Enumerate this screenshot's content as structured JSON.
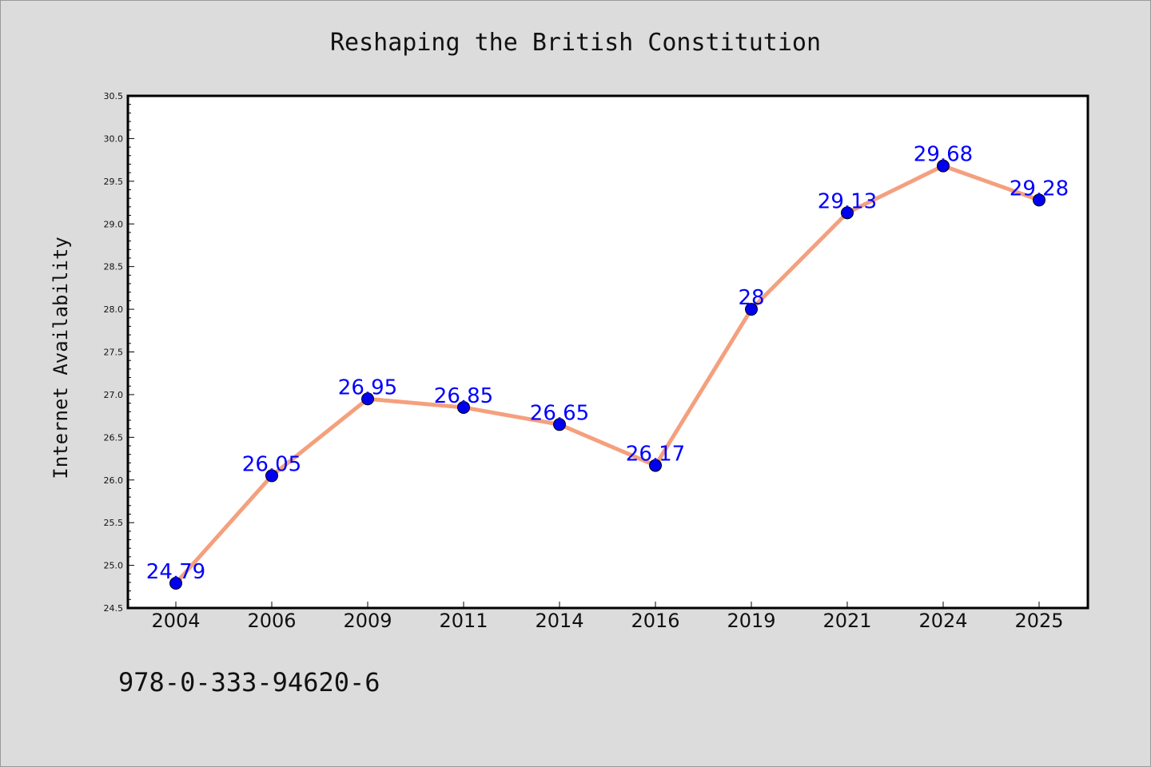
{
  "chart_data": {
    "type": "line",
    "title": "Reshaping the British Constitution",
    "xlabel": "",
    "ylabel": "Internet Availability",
    "categories": [
      "2004",
      "2006",
      "2009",
      "2011",
      "2014",
      "2016",
      "2019",
      "2021",
      "2024",
      "2025"
    ],
    "series": [
      {
        "values": [
          24.79,
          26.05,
          26.95,
          26.85,
          26.65,
          26.17,
          28,
          29.13,
          29.68,
          29.28
        ],
        "labels": [
          "24.79",
          "26.05",
          "26.95",
          "26.85",
          "26.65",
          "26.17",
          "28",
          "29.13",
          "29.68",
          "29.28"
        ]
      }
    ],
    "ylim": [
      24.5,
      30.5
    ],
    "yticks": [
      "24.5",
      "25.0",
      "25.5",
      "26.0",
      "26.5",
      "27.0",
      "27.5",
      "28.0",
      "28.5",
      "29.0",
      "29.5",
      "30.0",
      "30.5"
    ],
    "grid": false,
    "legend": "none",
    "colors": {
      "line": "#f4a07e",
      "marker": "#0000ee",
      "data_label": "#0000ff",
      "background": "#dcdcdc",
      "plot_background": "#ffffff"
    }
  },
  "footnote": "978-0-333-94620-6"
}
